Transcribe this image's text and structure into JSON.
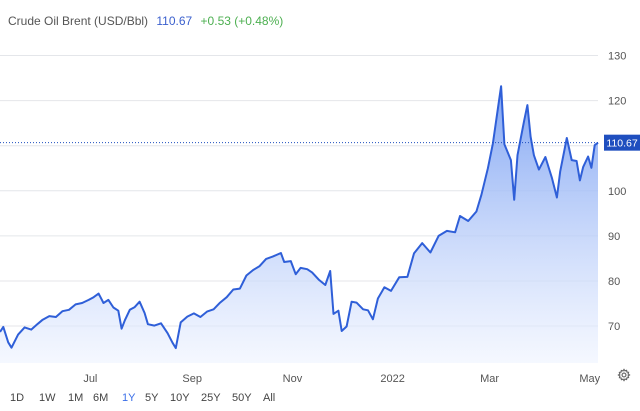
{
  "header": {
    "title": "Crude Oil Brent (USD/Bbl)",
    "price": "110.67",
    "change": "+0.53 (+0.48%)"
  },
  "ranges": {
    "items": [
      "1D",
      "1W",
      "1M",
      "6M",
      "1Y",
      "5Y",
      "10Y",
      "25Y",
      "50Y",
      "All"
    ],
    "active": "1Y"
  },
  "colors": {
    "line": "#2f5fd8",
    "fill_top": "#7aa0f2",
    "fill_bottom": "#eef3ff",
    "price_label_bg": "#1f4fbf",
    "active_range": "#3a6ee8"
  },
  "icons": {
    "settings": "gear-icon"
  },
  "chart_data": {
    "type": "area",
    "title": "Crude Oil Brent (USD/Bbl)",
    "xlabel": "",
    "ylabel": "",
    "ylim": [
      61.8,
      133
    ],
    "y_ticks": [
      70,
      80,
      90,
      100,
      110,
      120,
      130
    ],
    "y_axis_position": "right",
    "x_ticks": [
      {
        "label": "Jul",
        "date": "2021-07-01"
      },
      {
        "label": "Sep",
        "date": "2021-09-01"
      },
      {
        "label": "Nov",
        "date": "2021-11-01"
      },
      {
        "label": "2022",
        "date": "2022-01-01"
      },
      {
        "label": "Mar",
        "date": "2022-03-01"
      },
      {
        "label": "May",
        "date": "2022-05-01"
      }
    ],
    "x_range": [
      "2021-05-07",
      "2022-05-06"
    ],
    "last_value": 110.67,
    "last_value_label": "110.67",
    "grid": "horizontal",
    "series": [
      {
        "values": [
          {
            "x": "2021-05-07",
            "y": 68.7
          },
          {
            "x": "2021-05-09",
            "y": 69.8
          },
          {
            "x": "2021-05-12",
            "y": 66.4
          },
          {
            "x": "2021-05-14",
            "y": 65.2
          },
          {
            "x": "2021-05-18",
            "y": 68.1
          },
          {
            "x": "2021-05-22",
            "y": 69.7
          },
          {
            "x": "2021-05-26",
            "y": 69.2
          },
          {
            "x": "2021-05-30",
            "y": 70.5
          },
          {
            "x": "2021-06-02",
            "y": 71.4
          },
          {
            "x": "2021-06-06",
            "y": 72.2
          },
          {
            "x": "2021-06-10",
            "y": 72.0
          },
          {
            "x": "2021-06-14",
            "y": 73.3
          },
          {
            "x": "2021-06-18",
            "y": 73.6
          },
          {
            "x": "2021-06-22",
            "y": 74.8
          },
          {
            "x": "2021-06-26",
            "y": 75.1
          },
          {
            "x": "2021-06-30",
            "y": 75.8
          },
          {
            "x": "2021-07-03",
            "y": 76.4
          },
          {
            "x": "2021-07-06",
            "y": 77.2
          },
          {
            "x": "2021-07-09",
            "y": 75.1
          },
          {
            "x": "2021-07-12",
            "y": 75.8
          },
          {
            "x": "2021-07-15",
            "y": 74.1
          },
          {
            "x": "2021-07-18",
            "y": 73.4
          },
          {
            "x": "2021-07-20",
            "y": 69.4
          },
          {
            "x": "2021-07-22",
            "y": 71.3
          },
          {
            "x": "2021-07-25",
            "y": 73.6
          },
          {
            "x": "2021-07-28",
            "y": 74.2
          },
          {
            "x": "2021-07-31",
            "y": 75.4
          },
          {
            "x": "2021-08-03",
            "y": 72.9
          },
          {
            "x": "2021-08-05",
            "y": 70.4
          },
          {
            "x": "2021-08-09",
            "y": 70.1
          },
          {
            "x": "2021-08-13",
            "y": 70.6
          },
          {
            "x": "2021-08-17",
            "y": 68.4
          },
          {
            "x": "2021-08-20",
            "y": 66.3
          },
          {
            "x": "2021-08-22",
            "y": 65.1
          },
          {
            "x": "2021-08-25",
            "y": 70.8
          },
          {
            "x": "2021-08-29",
            "y": 72.1
          },
          {
            "x": "2021-09-02",
            "y": 72.8
          },
          {
            "x": "2021-09-06",
            "y": 72.0
          },
          {
            "x": "2021-09-10",
            "y": 73.2
          },
          {
            "x": "2021-09-14",
            "y": 73.7
          },
          {
            "x": "2021-09-18",
            "y": 75.2
          },
          {
            "x": "2021-09-22",
            "y": 76.4
          },
          {
            "x": "2021-09-26",
            "y": 78.1
          },
          {
            "x": "2021-09-30",
            "y": 78.3
          },
          {
            "x": "2021-10-04",
            "y": 81.2
          },
          {
            "x": "2021-10-08",
            "y": 82.4
          },
          {
            "x": "2021-10-12",
            "y": 83.3
          },
          {
            "x": "2021-10-16",
            "y": 84.9
          },
          {
            "x": "2021-10-20",
            "y": 85.4
          },
          {
            "x": "2021-10-25",
            "y": 86.2
          },
          {
            "x": "2021-10-27",
            "y": 84.2
          },
          {
            "x": "2021-10-31",
            "y": 84.4
          },
          {
            "x": "2021-11-03",
            "y": 81.5
          },
          {
            "x": "2021-11-06",
            "y": 82.9
          },
          {
            "x": "2021-11-10",
            "y": 82.6
          },
          {
            "x": "2021-11-13",
            "y": 81.9
          },
          {
            "x": "2021-11-17",
            "y": 80.3
          },
          {
            "x": "2021-11-21",
            "y": 79.1
          },
          {
            "x": "2021-11-24",
            "y": 82.2
          },
          {
            "x": "2021-11-26",
            "y": 72.7
          },
          {
            "x": "2021-11-29",
            "y": 73.4
          },
          {
            "x": "2021-12-01",
            "y": 68.9
          },
          {
            "x": "2021-12-04",
            "y": 69.9
          },
          {
            "x": "2021-12-07",
            "y": 75.4
          },
          {
            "x": "2021-12-10",
            "y": 75.2
          },
          {
            "x": "2021-12-14",
            "y": 73.7
          },
          {
            "x": "2021-12-17",
            "y": 73.5
          },
          {
            "x": "2021-12-20",
            "y": 71.5
          },
          {
            "x": "2021-12-23",
            "y": 76.1
          },
          {
            "x": "2021-12-27",
            "y": 78.6
          },
          {
            "x": "2021-12-31",
            "y": 77.8
          },
          {
            "x": "2022-01-05",
            "y": 80.8
          },
          {
            "x": "2022-01-10",
            "y": 80.9
          },
          {
            "x": "2022-01-14",
            "y": 86.1
          },
          {
            "x": "2022-01-19",
            "y": 88.4
          },
          {
            "x": "2022-01-24",
            "y": 86.3
          },
          {
            "x": "2022-01-29",
            "y": 90.0
          },
          {
            "x": "2022-02-03",
            "y": 91.1
          },
          {
            "x": "2022-02-08",
            "y": 90.8
          },
          {
            "x": "2022-02-11",
            "y": 94.4
          },
          {
            "x": "2022-02-16",
            "y": 93.3
          },
          {
            "x": "2022-02-21",
            "y": 95.4
          },
          {
            "x": "2022-02-24",
            "y": 99.1
          },
          {
            "x": "2022-02-28",
            "y": 105.0
          },
          {
            "x": "2022-03-03",
            "y": 110.5
          },
          {
            "x": "2022-03-06",
            "y": 118.1
          },
          {
            "x": "2022-03-08",
            "y": 123.2
          },
          {
            "x": "2022-03-10",
            "y": 110.3
          },
          {
            "x": "2022-03-14",
            "y": 106.8
          },
          {
            "x": "2022-03-16",
            "y": 98.0
          },
          {
            "x": "2022-03-18",
            "y": 107.9
          },
          {
            "x": "2022-03-22",
            "y": 115.5
          },
          {
            "x": "2022-03-24",
            "y": 119.0
          },
          {
            "x": "2022-03-26",
            "y": 112.0
          },
          {
            "x": "2022-03-28",
            "y": 107.9
          },
          {
            "x": "2022-03-31",
            "y": 104.7
          },
          {
            "x": "2022-04-04",
            "y": 107.5
          },
          {
            "x": "2022-04-08",
            "y": 102.8
          },
          {
            "x": "2022-04-11",
            "y": 98.5
          },
          {
            "x": "2022-04-13",
            "y": 104.3
          },
          {
            "x": "2022-04-17",
            "y": 111.7
          },
          {
            "x": "2022-04-20",
            "y": 106.8
          },
          {
            "x": "2022-04-23",
            "y": 106.6
          },
          {
            "x": "2022-04-25",
            "y": 102.3
          },
          {
            "x": "2022-04-27",
            "y": 105.3
          },
          {
            "x": "2022-04-30",
            "y": 107.6
          },
          {
            "x": "2022-05-02",
            "y": 105.1
          },
          {
            "x": "2022-05-04",
            "y": 110.1
          },
          {
            "x": "2022-05-06",
            "y": 110.67
          }
        ]
      }
    ]
  }
}
